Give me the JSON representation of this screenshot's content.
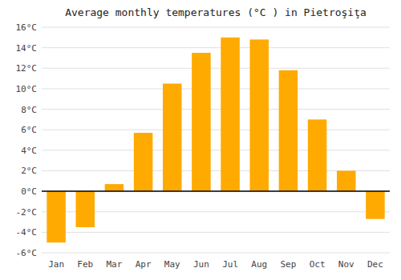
{
  "chart_data": {
    "type": "bar",
    "title": "Average monthly temperatures (°C ) in Pietroşiţa",
    "categories": [
      "Jan",
      "Feb",
      "Mar",
      "Apr",
      "May",
      "Jun",
      "Jul",
      "Aug",
      "Sep",
      "Oct",
      "Nov",
      "Dec"
    ],
    "values": [
      -5.0,
      -3.5,
      0.7,
      5.7,
      10.5,
      13.5,
      15.0,
      14.8,
      11.8,
      7.0,
      2.0,
      -2.7
    ],
    "color": "#FFAA00",
    "ylim": [
      -6,
      16
    ],
    "yticks": [
      {
        "value": -6,
        "label": "-6°C"
      },
      {
        "value": -4,
        "label": "-4°C"
      },
      {
        "value": -2,
        "label": "-2°C"
      },
      {
        "value": 0,
        "label": "0°C"
      },
      {
        "value": 2,
        "label": "2°C"
      },
      {
        "value": 4,
        "label": "4°C"
      },
      {
        "value": 6,
        "label": "6°C"
      },
      {
        "value": 8,
        "label": "8°C"
      },
      {
        "value": 10,
        "label": "10°C"
      },
      {
        "value": 12,
        "label": "12°C"
      },
      {
        "value": 14,
        "label": "14°C"
      },
      {
        "value": 16,
        "label": "16°C"
      }
    ],
    "grid": true
  }
}
